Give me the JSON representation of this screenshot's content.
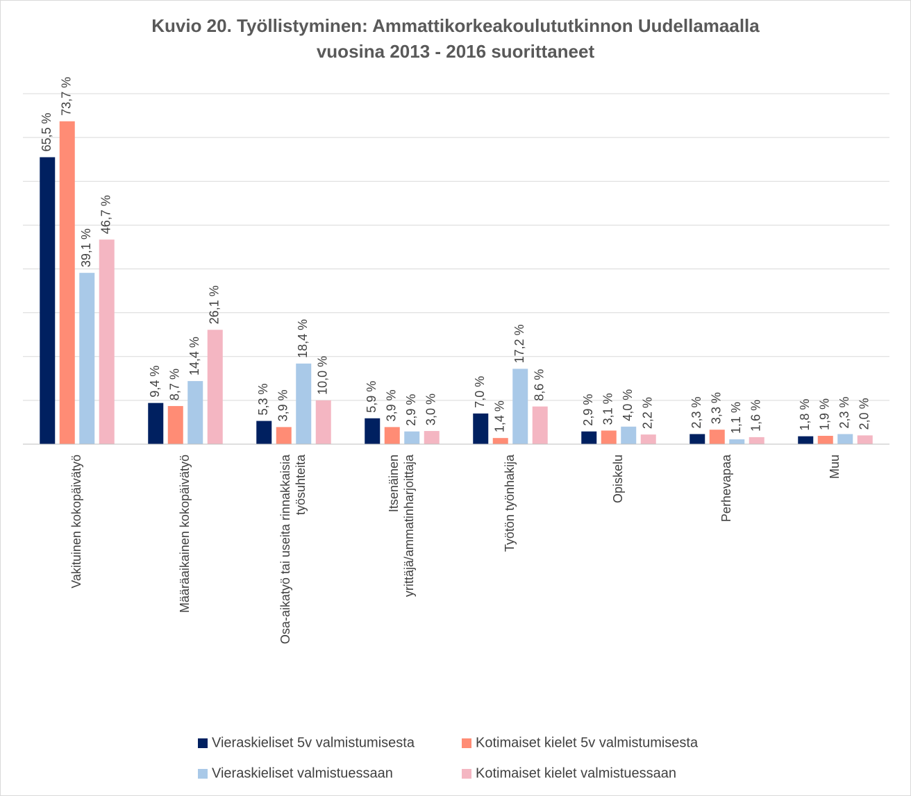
{
  "chart_data": {
    "type": "bar",
    "title": "Kuvio 20. Työllistyminen: Ammattikorkeakoulututkinnon Uudellamaalla vuosina 2013 - 2016 suorittaneet",
    "categories": [
      "Vakituinen kokopäivätyö",
      "Määräaikainen kokopäivätyö",
      "Osa-aikatyö tai useita rinnakkaisia työsuhteita",
      "Itsenäinen yrittäjä/ammatinharjoittaja",
      "Työtön työnhakija",
      "Opiskelu",
      "Perhevapaa",
      "Muu"
    ],
    "series": [
      {
        "name": "Vieraskieliset 5v valmistumisesta",
        "color": "#002060",
        "values": [
          65.5,
          9.4,
          5.3,
          5.9,
          7.0,
          2.9,
          2.3,
          1.8
        ],
        "value_labels": [
          "65,5 %",
          "9,4 %",
          "5,3 %",
          "5,9 %",
          "7,0 %",
          "2,9 %",
          "2,3 %",
          "1,8 %"
        ]
      },
      {
        "name": "Kotimaiset kielet 5v valmistumisesta",
        "color": "#ff8c75",
        "values": [
          73.7,
          8.7,
          3.9,
          3.9,
          1.4,
          3.1,
          3.3,
          1.9
        ],
        "value_labels": [
          "73,7 %",
          "8,7 %",
          "3,9 %",
          "3,9 %",
          "1,4 %",
          "3,1 %",
          "3,3 %",
          "1,9 %"
        ]
      },
      {
        "name": "Vieraskieliset valmistuessaan",
        "color": "#a9c9e8",
        "values": [
          39.1,
          14.4,
          18.4,
          2.9,
          17.2,
          4.0,
          1.1,
          2.3
        ],
        "value_labels": [
          "39,1 %",
          "14,4 %",
          "18,4 %",
          "2,9 %",
          "17,2 %",
          "4,0 %",
          "1,1 %",
          "2,3 %"
        ]
      },
      {
        "name": "Kotimaiset kielet valmistuessaan",
        "color": "#f4b6c2",
        "values": [
          46.7,
          26.1,
          10.0,
          3.0,
          8.6,
          2.2,
          1.6,
          2.0
        ],
        "value_labels": [
          "46,7 %",
          "26,1 %",
          "10,0 %",
          "3,0 %",
          "8,6 %",
          "2,2 %",
          "1,6 %",
          "2,0 %"
        ]
      }
    ],
    "ylim": [
      0,
      80
    ],
    "yticks": [
      0,
      10,
      20,
      30,
      40,
      50,
      60,
      70,
      80
    ],
    "grid": true,
    "legend": "bottom"
  }
}
